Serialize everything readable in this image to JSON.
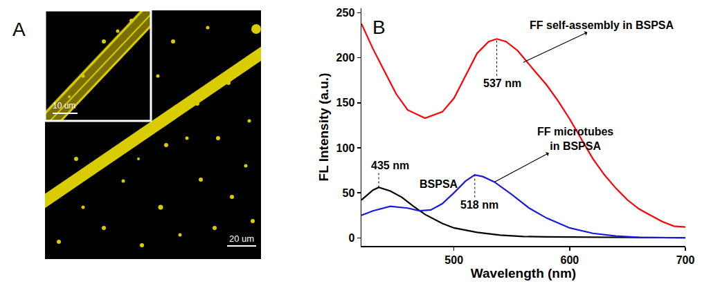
{
  "chart_data": {
    "type": "line",
    "panel_label": "B",
    "x_label": "Wavelength (nm)",
    "y_label": "FL Intensity (a.u.)",
    "xlim": [
      420,
      700
    ],
    "xticks": [
      500,
      600,
      700
    ],
    "ylim": [
      -9,
      255
    ],
    "yticks": [
      0,
      50,
      100,
      150,
      200,
      250
    ],
    "grid": false,
    "series": [
      {
        "name": "FF self-assembly in BSPSA",
        "color": "#ff0000",
        "x": [
          420,
          430,
          440,
          450,
          460,
          475,
          490,
          500,
          510,
          520,
          530,
          537,
          545,
          555,
          570,
          580,
          590,
          600,
          610,
          620,
          630,
          640,
          650,
          660,
          670,
          680,
          690,
          700
        ],
        "values": [
          238,
          210,
          185,
          160,
          142,
          133,
          140,
          155,
          180,
          205,
          218,
          221,
          218,
          208,
          185,
          170,
          152,
          132,
          110,
          88,
          70,
          55,
          42,
          32,
          25,
          18,
          13,
          12
        ]
      },
      {
        "name": "BSPSA",
        "color": "#000000",
        "x": [
          420,
          430,
          435,
          445,
          455,
          465,
          475,
          490,
          500,
          520,
          540,
          560,
          580,
          620,
          700
        ],
        "values": [
          42,
          53,
          56,
          52,
          45,
          35,
          26,
          16,
          11,
          6,
          3,
          1.5,
          1,
          0.5,
          0
        ]
      },
      {
        "name": "FF microtubes in BSPSA",
        "color": "#1a1adc",
        "x": [
          420,
          430,
          445,
          460,
          470,
          480,
          490,
          500,
          510,
          518,
          525,
          535,
          550,
          565,
          580,
          600,
          620,
          640,
          660,
          700
        ],
        "values": [
          25,
          30,
          35,
          33,
          30,
          31,
          38,
          50,
          63,
          70,
          68,
          62,
          48,
          33,
          22,
          11,
          5,
          2,
          0.5,
          0
        ]
      }
    ],
    "annotations": [
      {
        "text": "537 nm",
        "x": 542,
        "y": 180,
        "peak": {
          "x": 537,
          "y": 221
        }
      },
      {
        "text": "435 nm",
        "x": 445,
        "y": 72,
        "peak": {
          "x": 435,
          "y": 56
        }
      },
      {
        "text": "518 nm",
        "x": 522,
        "y": 45,
        "peak": {
          "x": 518,
          "y": 70
        }
      },
      {
        "text": "FF self-assembly in BSPSA",
        "x": 628,
        "y": 236,
        "arrow_from": {
          "x": 560,
          "y": 195
        }
      },
      {
        "text": "FF microtubes\nin BSPSA",
        "x": 605,
        "y": 110,
        "arrow_from": {
          "x": 535,
          "y": 62
        }
      },
      {
        "text": "BSPSA",
        "x": 487,
        "y": 60
      }
    ]
  },
  "image_panel": {
    "label": "A",
    "scale_bar": "20 um",
    "inset_scale_bar": "10 um"
  }
}
